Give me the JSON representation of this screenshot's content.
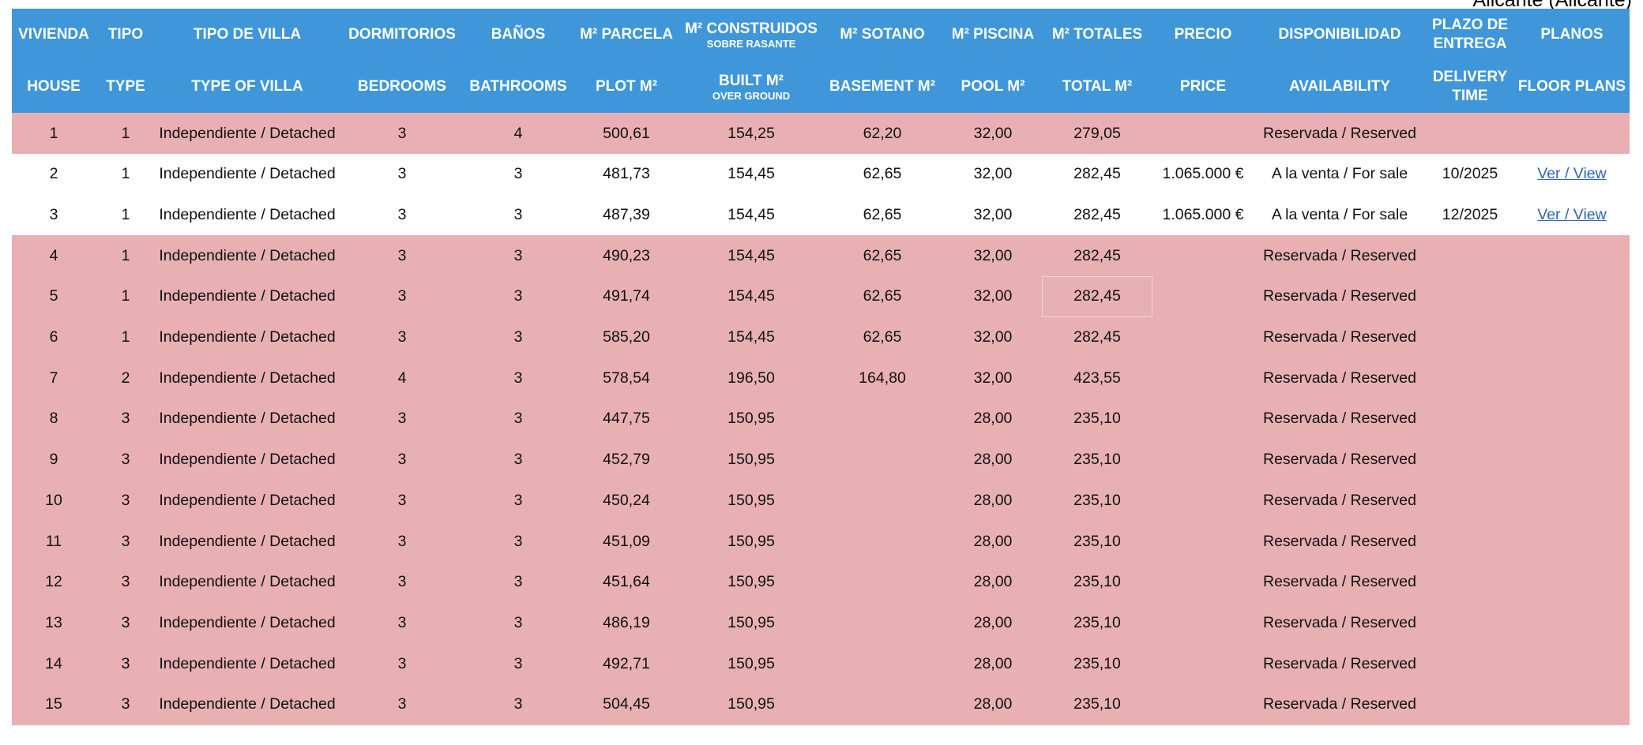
{
  "location": "Alicante (Alicante)",
  "headers_es": [
    "VIVIENDA",
    "TIPO",
    "TIPO DE VILLA",
    "DORMITORIOS",
    "BAÑOS",
    "M² PARCELA",
    "M² CONSTRUIDOS",
    "M² SOTANO",
    "M² PISCINA",
    "M² TOTALES",
    "PRECIO",
    "DISPONIBILIDAD",
    "PLAZO DE ENTREGA",
    "PLANOS"
  ],
  "headers_es_sub": {
    "built": "SOBRE RASANTE"
  },
  "headers_en": [
    "HOUSE",
    "TYPE",
    "TYPE OF VILLA",
    "BEDROOMS",
    "BATHROOMS",
    "PLOT M²",
    "BUILT M²",
    "BASEMENT M²",
    "POOL M²",
    "TOTAL M²",
    "PRICE",
    "AVAILABILITY",
    "DELIVERY TIME",
    "FLOOR PLANS"
  ],
  "headers_en_sub": {
    "built": "OVER GROUND"
  },
  "link_label": "Ver / View",
  "colors": {
    "header": "#3f96d8",
    "reserved_row": "#e8b0b3",
    "available_row": "#ffffff",
    "link": "#2f64b4"
  },
  "rows": [
    {
      "house": "1",
      "type": "1",
      "villa": "Independiente / Detached",
      "bedrooms": "3",
      "bathrooms": "4",
      "plot": "500,61",
      "built": "154,25",
      "basement": "62,20",
      "pool": "32,00",
      "total": "279,05",
      "price": "",
      "availability": "Reservada / Reserved",
      "delivery": "",
      "plans": "",
      "status": "reserved"
    },
    {
      "house": "2",
      "type": "1",
      "villa": "Independiente / Detached",
      "bedrooms": "3",
      "bathrooms": "3",
      "plot": "481,73",
      "built": "154,45",
      "basement": "62,65",
      "pool": "32,00",
      "total": "282,45",
      "price": "1.065.000 €",
      "availability": "A la venta / For sale",
      "delivery": "10/2025",
      "plans": "Ver / View",
      "status": "available"
    },
    {
      "house": "3",
      "type": "1",
      "villa": "Independiente / Detached",
      "bedrooms": "3",
      "bathrooms": "3",
      "plot": "487,39",
      "built": "154,45",
      "basement": "62,65",
      "pool": "32,00",
      "total": "282,45",
      "price": "1.065.000 €",
      "availability": "A la venta / For sale",
      "delivery": "12/2025",
      "plans": "Ver / View",
      "status": "available"
    },
    {
      "house": "4",
      "type": "1",
      "villa": "Independiente / Detached",
      "bedrooms": "3",
      "bathrooms": "3",
      "plot": "490,23",
      "built": "154,45",
      "basement": "62,65",
      "pool": "32,00",
      "total": "282,45",
      "price": "",
      "availability": "Reservada / Reserved",
      "delivery": "",
      "plans": "",
      "status": "reserved"
    },
    {
      "house": "5",
      "type": "1",
      "villa": "Independiente / Detached",
      "bedrooms": "3",
      "bathrooms": "3",
      "plot": "491,74",
      "built": "154,45",
      "basement": "62,65",
      "pool": "32,00",
      "total": "282,45",
      "price": "",
      "availability": "Reservada / Reserved",
      "delivery": "",
      "plans": "",
      "status": "reserved"
    },
    {
      "house": "6",
      "type": "1",
      "villa": "Independiente / Detached",
      "bedrooms": "3",
      "bathrooms": "3",
      "plot": "585,20",
      "built": "154,45",
      "basement": "62,65",
      "pool": "32,00",
      "total": "282,45",
      "price": "",
      "availability": "Reservada / Reserved",
      "delivery": "",
      "plans": "",
      "status": "reserved"
    },
    {
      "house": "7",
      "type": "2",
      "villa": "Independiente / Detached",
      "bedrooms": "4",
      "bathrooms": "3",
      "plot": "578,54",
      "built": "196,50",
      "basement": "164,80",
      "pool": "32,00",
      "total": "423,55",
      "price": "",
      "availability": "Reservada / Reserved",
      "delivery": "",
      "plans": "",
      "status": "reserved"
    },
    {
      "house": "8",
      "type": "3",
      "villa": "Independiente / Detached",
      "bedrooms": "3",
      "bathrooms": "3",
      "plot": "447,75",
      "built": "150,95",
      "basement": "",
      "pool": "28,00",
      "total": "235,10",
      "price": "",
      "availability": "Reservada / Reserved",
      "delivery": "",
      "plans": "",
      "status": "reserved"
    },
    {
      "house": "9",
      "type": "3",
      "villa": "Independiente / Detached",
      "bedrooms": "3",
      "bathrooms": "3",
      "plot": "452,79",
      "built": "150,95",
      "basement": "",
      "pool": "28,00",
      "total": "235,10",
      "price": "",
      "availability": "Reservada / Reserved",
      "delivery": "",
      "plans": "",
      "status": "reserved"
    },
    {
      "house": "10",
      "type": "3",
      "villa": "Independiente / Detached",
      "bedrooms": "3",
      "bathrooms": "3",
      "plot": "450,24",
      "built": "150,95",
      "basement": "",
      "pool": "28,00",
      "total": "235,10",
      "price": "",
      "availability": "Reservada / Reserved",
      "delivery": "",
      "plans": "",
      "status": "reserved"
    },
    {
      "house": "11",
      "type": "3",
      "villa": "Independiente / Detached",
      "bedrooms": "3",
      "bathrooms": "3",
      "plot": "451,09",
      "built": "150,95",
      "basement": "",
      "pool": "28,00",
      "total": "235,10",
      "price": "",
      "availability": "Reservada / Reserved",
      "delivery": "",
      "plans": "",
      "status": "reserved"
    },
    {
      "house": "12",
      "type": "3",
      "villa": "Independiente / Detached",
      "bedrooms": "3",
      "bathrooms": "3",
      "plot": "451,64",
      "built": "150,95",
      "basement": "",
      "pool": "28,00",
      "total": "235,10",
      "price": "",
      "availability": "Reservada / Reserved",
      "delivery": "",
      "plans": "",
      "status": "reserved"
    },
    {
      "house": "13",
      "type": "3",
      "villa": "Independiente / Detached",
      "bedrooms": "3",
      "bathrooms": "3",
      "plot": "486,19",
      "built": "150,95",
      "basement": "",
      "pool": "28,00",
      "total": "235,10",
      "price": "",
      "availability": "Reservada / Reserved",
      "delivery": "",
      "plans": "",
      "status": "reserved"
    },
    {
      "house": "14",
      "type": "3",
      "villa": "Independiente / Detached",
      "bedrooms": "3",
      "bathrooms": "3",
      "plot": "492,71",
      "built": "150,95",
      "basement": "",
      "pool": "28,00",
      "total": "235,10",
      "price": "",
      "availability": "Reservada / Reserved",
      "delivery": "",
      "plans": "",
      "status": "reserved"
    },
    {
      "house": "15",
      "type": "3",
      "villa": "Independiente / Detached",
      "bedrooms": "3",
      "bathrooms": "3",
      "plot": "504,45",
      "built": "150,95",
      "basement": "",
      "pool": "28,00",
      "total": "235,10",
      "price": "",
      "availability": "Reservada / Reserved",
      "delivery": "",
      "plans": "",
      "status": "reserved"
    }
  ]
}
